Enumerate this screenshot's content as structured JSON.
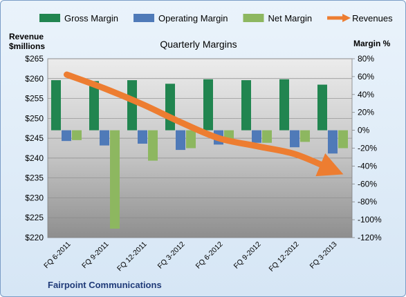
{
  "chart_data": {
    "type": "bar",
    "title": "Quarterly Margins",
    "footer": "Fairpoint Communications",
    "left_axis": {
      "label_line1": "Revenue",
      "label_line2": "$millions",
      "min": 220,
      "max": 265,
      "step": 5,
      "prefix": "$"
    },
    "right_axis": {
      "label": "Margin %",
      "min": -120,
      "max": 80,
      "step": 20,
      "suffix": "%"
    },
    "categories": [
      "FQ 6-2011",
      "FQ 9-2011",
      "FQ 12-2011",
      "FQ 3-2012",
      "FQ 6-2012",
      "FQ 9-2012",
      "FQ 12-2012",
      "FQ 3-2013"
    ],
    "series": [
      {
        "name": "Gross Margin",
        "type": "bar",
        "axis": "right",
        "color": "#218550",
        "values": [
          56,
          55,
          56,
          52,
          57,
          56,
          57,
          51
        ]
      },
      {
        "name": "Operating Margin",
        "type": "bar",
        "axis": "right",
        "color": "#4f7ab8",
        "values": [
          -12,
          -17,
          -15,
          -22,
          -16,
          -14,
          -19,
          -26
        ]
      },
      {
        "name": "Net Margin",
        "type": "bar",
        "axis": "right",
        "color": "#8db760",
        "values": [
          -11,
          -110,
          -34,
          -20,
          -14,
          -14,
          -13,
          -20
        ]
      },
      {
        "name": "Revenues",
        "type": "line",
        "axis": "left",
        "color": "#ed7d31",
        "values": [
          261,
          257.5,
          253.5,
          249,
          245,
          243,
          241,
          237
        ]
      }
    ],
    "grid": true,
    "legend_position": "top"
  }
}
